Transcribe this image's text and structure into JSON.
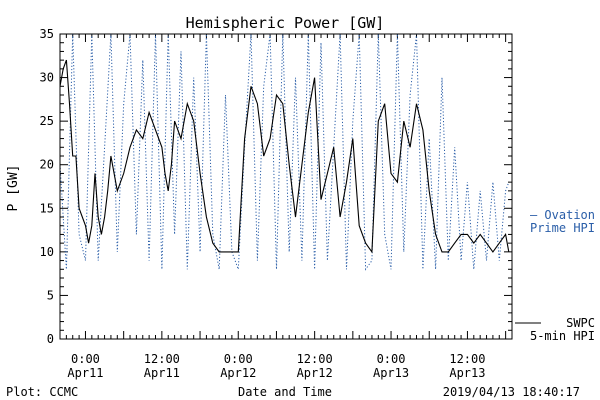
{
  "chart_data": {
    "type": "line",
    "title": "Hemispheric Power [GW]",
    "ylabel": "P [GW]",
    "xlabel": "Date and Time",
    "ylim": [
      0,
      35
    ],
    "y_ticks": [
      0,
      5,
      10,
      15,
      20,
      25,
      30,
      35
    ],
    "xlim": [
      "2019-04-10T20:00",
      "2019-04-13T19:00"
    ],
    "x_ticks": [
      {
        "time": "2019-04-11T00:00",
        "line1": "0:00",
        "line2": "Apr11"
      },
      {
        "time": "2019-04-11T12:00",
        "line1": "12:00",
        "line2": "Apr11"
      },
      {
        "time": "2019-04-12T00:00",
        "line1": "0:00",
        "line2": "Apr12"
      },
      {
        "time": "2019-04-12T12:00",
        "line1": "12:00",
        "line2": "Apr12"
      },
      {
        "time": "2019-04-13T00:00",
        "line1": "0:00",
        "line2": "Apr13"
      },
      {
        "time": "2019-04-13T12:00",
        "line1": "12:00",
        "line2": "Apr13"
      }
    ],
    "series": [
      {
        "name": "SWPC 5-min HPI",
        "color": "#000000",
        "style": "solid",
        "x": [
          "2019-04-10T20:00",
          "2019-04-10T20:30",
          "2019-04-10T21:00",
          "2019-04-10T21:30",
          "2019-04-10T22:00",
          "2019-04-10T22:30",
          "2019-04-10T23:00",
          "2019-04-10T23:30",
          "2019-04-11T00:00",
          "2019-04-11T00:30",
          "2019-04-11T01:00",
          "2019-04-11T01:30",
          "2019-04-11T02:00",
          "2019-04-11T02:30",
          "2019-04-11T03:00",
          "2019-04-11T03:30",
          "2019-04-11T04:00",
          "2019-04-11T05:00",
          "2019-04-11T06:00",
          "2019-04-11T07:00",
          "2019-04-11T08:00",
          "2019-04-11T09:00",
          "2019-04-11T10:00",
          "2019-04-11T11:00",
          "2019-04-11T12:00",
          "2019-04-11T12:30",
          "2019-04-11T13:00",
          "2019-04-11T13:30",
          "2019-04-11T14:00",
          "2019-04-11T15:00",
          "2019-04-11T16:00",
          "2019-04-11T17:00",
          "2019-04-11T18:00",
          "2019-04-11T19:00",
          "2019-04-11T20:00",
          "2019-04-11T21:00",
          "2019-04-11T22:00",
          "2019-04-11T23:00",
          "2019-04-12T00:00",
          "2019-04-12T01:00",
          "2019-04-12T02:00",
          "2019-04-12T03:00",
          "2019-04-12T04:00",
          "2019-04-12T05:00",
          "2019-04-12T06:00",
          "2019-04-12T07:00",
          "2019-04-12T08:00",
          "2019-04-12T09:00",
          "2019-04-12T10:00",
          "2019-04-12T11:00",
          "2019-04-12T12:00",
          "2019-04-12T13:00",
          "2019-04-12T14:00",
          "2019-04-12T15:00",
          "2019-04-12T16:00",
          "2019-04-12T17:00",
          "2019-04-12T18:00",
          "2019-04-12T19:00",
          "2019-04-12T20:00",
          "2019-04-12T21:00",
          "2019-04-12T22:00",
          "2019-04-12T23:00",
          "2019-04-13T00:00",
          "2019-04-13T01:00",
          "2019-04-13T02:00",
          "2019-04-13T03:00",
          "2019-04-13T04:00",
          "2019-04-13T05:00",
          "2019-04-13T06:00",
          "2019-04-13T07:00",
          "2019-04-13T08:00",
          "2019-04-13T09:00",
          "2019-04-13T10:00",
          "2019-04-13T11:00",
          "2019-04-13T12:00",
          "2019-04-13T13:00",
          "2019-04-13T14:00",
          "2019-04-13T15:00",
          "2019-04-13T16:00",
          "2019-04-13T17:00",
          "2019-04-13T18:00",
          "2019-04-13T18:30"
        ],
        "values": [
          29,
          31,
          32,
          27,
          21,
          21,
          15,
          14,
          13,
          11,
          13,
          19,
          14,
          12,
          14,
          17,
          21,
          17,
          19,
          22,
          24,
          23,
          26,
          24,
          22,
          19,
          17,
          20,
          25,
          23,
          27,
          25,
          19,
          14,
          11,
          10,
          10,
          10,
          10,
          23,
          29,
          27,
          21,
          23,
          28,
          27,
          20,
          14,
          20,
          26,
          30,
          16,
          19,
          22,
          14,
          18,
          23,
          13,
          11,
          10,
          25,
          27,
          19,
          18,
          25,
          22,
          27,
          24,
          17,
          12,
          10,
          10,
          11,
          12,
          12,
          11,
          12,
          11,
          10,
          11,
          12,
          10
        ]
      },
      {
        "name": "Ovation Prime HPI",
        "color": "#2a5ea8",
        "style": "dotted",
        "x": [
          "2019-04-10T20:00",
          "2019-04-10T21:00",
          "2019-04-10T22:00",
          "2019-04-10T23:00",
          "2019-04-11T00:00",
          "2019-04-11T01:00",
          "2019-04-11T02:00",
          "2019-04-11T03:00",
          "2019-04-11T04:00",
          "2019-04-11T05:00",
          "2019-04-11T06:00",
          "2019-04-11T07:00",
          "2019-04-11T08:00",
          "2019-04-11T09:00",
          "2019-04-11T10:00",
          "2019-04-11T11:00",
          "2019-04-11T12:00",
          "2019-04-11T13:00",
          "2019-04-11T14:00",
          "2019-04-11T15:00",
          "2019-04-11T16:00",
          "2019-04-11T17:00",
          "2019-04-11T18:00",
          "2019-04-11T19:00",
          "2019-04-11T20:00",
          "2019-04-11T21:00",
          "2019-04-11T22:00",
          "2019-04-11T23:00",
          "2019-04-12T00:00",
          "2019-04-12T01:00",
          "2019-04-12T02:00",
          "2019-04-12T03:00",
          "2019-04-12T04:00",
          "2019-04-12T05:00",
          "2019-04-12T06:00",
          "2019-04-12T07:00",
          "2019-04-12T08:00",
          "2019-04-12T09:00",
          "2019-04-12T10:00",
          "2019-04-12T11:00",
          "2019-04-12T12:00",
          "2019-04-12T13:00",
          "2019-04-12T14:00",
          "2019-04-12T15:00",
          "2019-04-12T16:00",
          "2019-04-12T17:00",
          "2019-04-12T18:00",
          "2019-04-12T19:00",
          "2019-04-12T20:00",
          "2019-04-12T21:00",
          "2019-04-12T22:00",
          "2019-04-12T23:00",
          "2019-04-13T00:00",
          "2019-04-13T01:00",
          "2019-04-13T02:00",
          "2019-04-13T03:00",
          "2019-04-13T04:00",
          "2019-04-13T05:00",
          "2019-04-13T06:00",
          "2019-04-13T07:00",
          "2019-04-13T08:00",
          "2019-04-13T09:00",
          "2019-04-13T10:00",
          "2019-04-13T11:00",
          "2019-04-13T12:00",
          "2019-04-13T13:00",
          "2019-04-13T14:00",
          "2019-04-13T15:00",
          "2019-04-13T16:00",
          "2019-04-13T17:00",
          "2019-04-13T18:00",
          "2019-04-13T18:30"
        ],
        "values": [
          20,
          8,
          35,
          12,
          9,
          35,
          9,
          22,
          35,
          10,
          27,
          35,
          12,
          32,
          9,
          35,
          8,
          35,
          12,
          33,
          8,
          30,
          10,
          35,
          12,
          8,
          28,
          10,
          8,
          22,
          35,
          9,
          29,
          35,
          8,
          35,
          10,
          30,
          9,
          35,
          8,
          34,
          9,
          22,
          35,
          8,
          25,
          35,
          8,
          9,
          35,
          12,
          8,
          35,
          10,
          28,
          35,
          8,
          23,
          8,
          30,
          9,
          22,
          9,
          18,
          8,
          17,
          9,
          18,
          9,
          17,
          18
        ]
      }
    ],
    "legend": [
      {
        "lines": [
          "— Ovation",
          "Prime HPI"
        ],
        "color": "#2a5ea8",
        "placement": "right-middle"
      },
      {
        "lines": [
          "SWPC",
          "5-min HPI"
        ],
        "color": "#000000",
        "placement": "right-bottom"
      }
    ],
    "grid": false
  },
  "footer": {
    "left": "Plot: CCMC",
    "center": "Date and Time",
    "right": "2019/04/13 18:40:17"
  }
}
